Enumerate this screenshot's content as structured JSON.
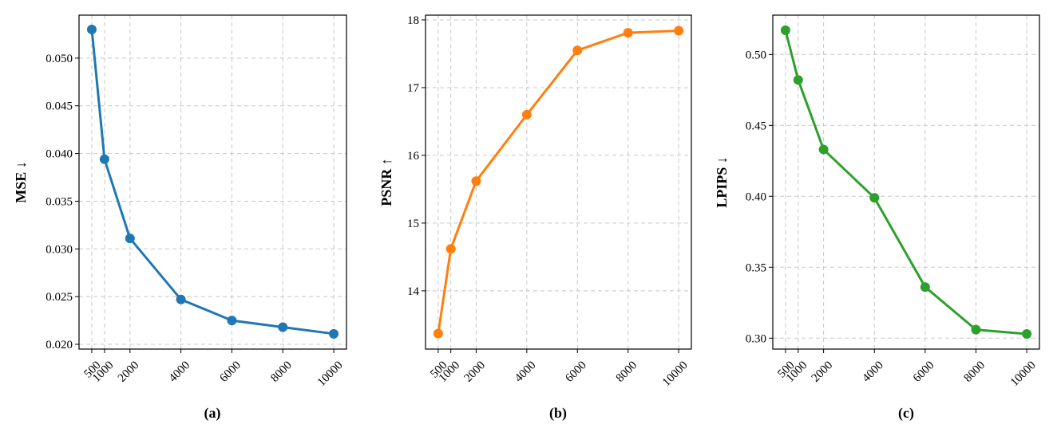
{
  "chart_data": [
    {
      "type": "line",
      "caption": "(a)",
      "ylabel": "MSE ↓",
      "color": "#1f77b4",
      "x": [
        500,
        1000,
        2000,
        4000,
        6000,
        8000,
        10000
      ],
      "x_tick_labels": [
        "500",
        "1000",
        "2000",
        "4000",
        "6000",
        "8000",
        "10000"
      ],
      "y": [
        0.053,
        0.0394,
        0.0311,
        0.0247,
        0.0225,
        0.0218,
        0.0211
      ],
      "y_ticks": [
        0.02,
        0.025,
        0.03,
        0.035,
        0.04,
        0.045,
        0.05
      ],
      "y_tick_labels": [
        "0.020",
        "0.025",
        "0.030",
        "0.035",
        "0.040",
        "0.045",
        "0.050"
      ],
      "ylim": [
        0.0195,
        0.0545
      ],
      "xlim": [
        0,
        10500
      ],
      "grid": true
    },
    {
      "type": "line",
      "caption": "(b)",
      "ylabel": "PSNR ↑",
      "color": "#ff7f0e",
      "x": [
        500,
        1000,
        2000,
        4000,
        6000,
        8000,
        10000
      ],
      "x_tick_labels": [
        "500",
        "1000",
        "2000",
        "4000",
        "6000",
        "8000",
        "10000"
      ],
      "y": [
        13.37,
        14.62,
        15.62,
        16.6,
        17.55,
        17.81,
        17.84
      ],
      "y_ticks": [
        14,
        15,
        16,
        17,
        18
      ],
      "y_tick_labels": [
        "14",
        "15",
        "16",
        "17",
        "18"
      ],
      "ylim": [
        13.14,
        18.07
      ],
      "xlim": [
        0,
        10500
      ],
      "grid": true
    },
    {
      "type": "line",
      "caption": "(c)",
      "ylabel": "LPIPS ↓",
      "color": "#2ca02c",
      "x": [
        500,
        1000,
        2000,
        4000,
        6000,
        8000,
        10000
      ],
      "x_tick_labels": [
        "500",
        "1000",
        "2000",
        "4000",
        "6000",
        "8000",
        "10000"
      ],
      "y": [
        0.517,
        0.482,
        0.433,
        0.399,
        0.336,
        0.306,
        0.303
      ],
      "y_ticks": [
        0.3,
        0.35,
        0.4,
        0.45,
        0.5
      ],
      "y_tick_labels": [
        "0.30",
        "0.35",
        "0.40",
        "0.45",
        "0.50"
      ],
      "ylim": [
        0.2923,
        0.5277
      ],
      "xlim": [
        0,
        10500
      ],
      "grid": true
    }
  ]
}
